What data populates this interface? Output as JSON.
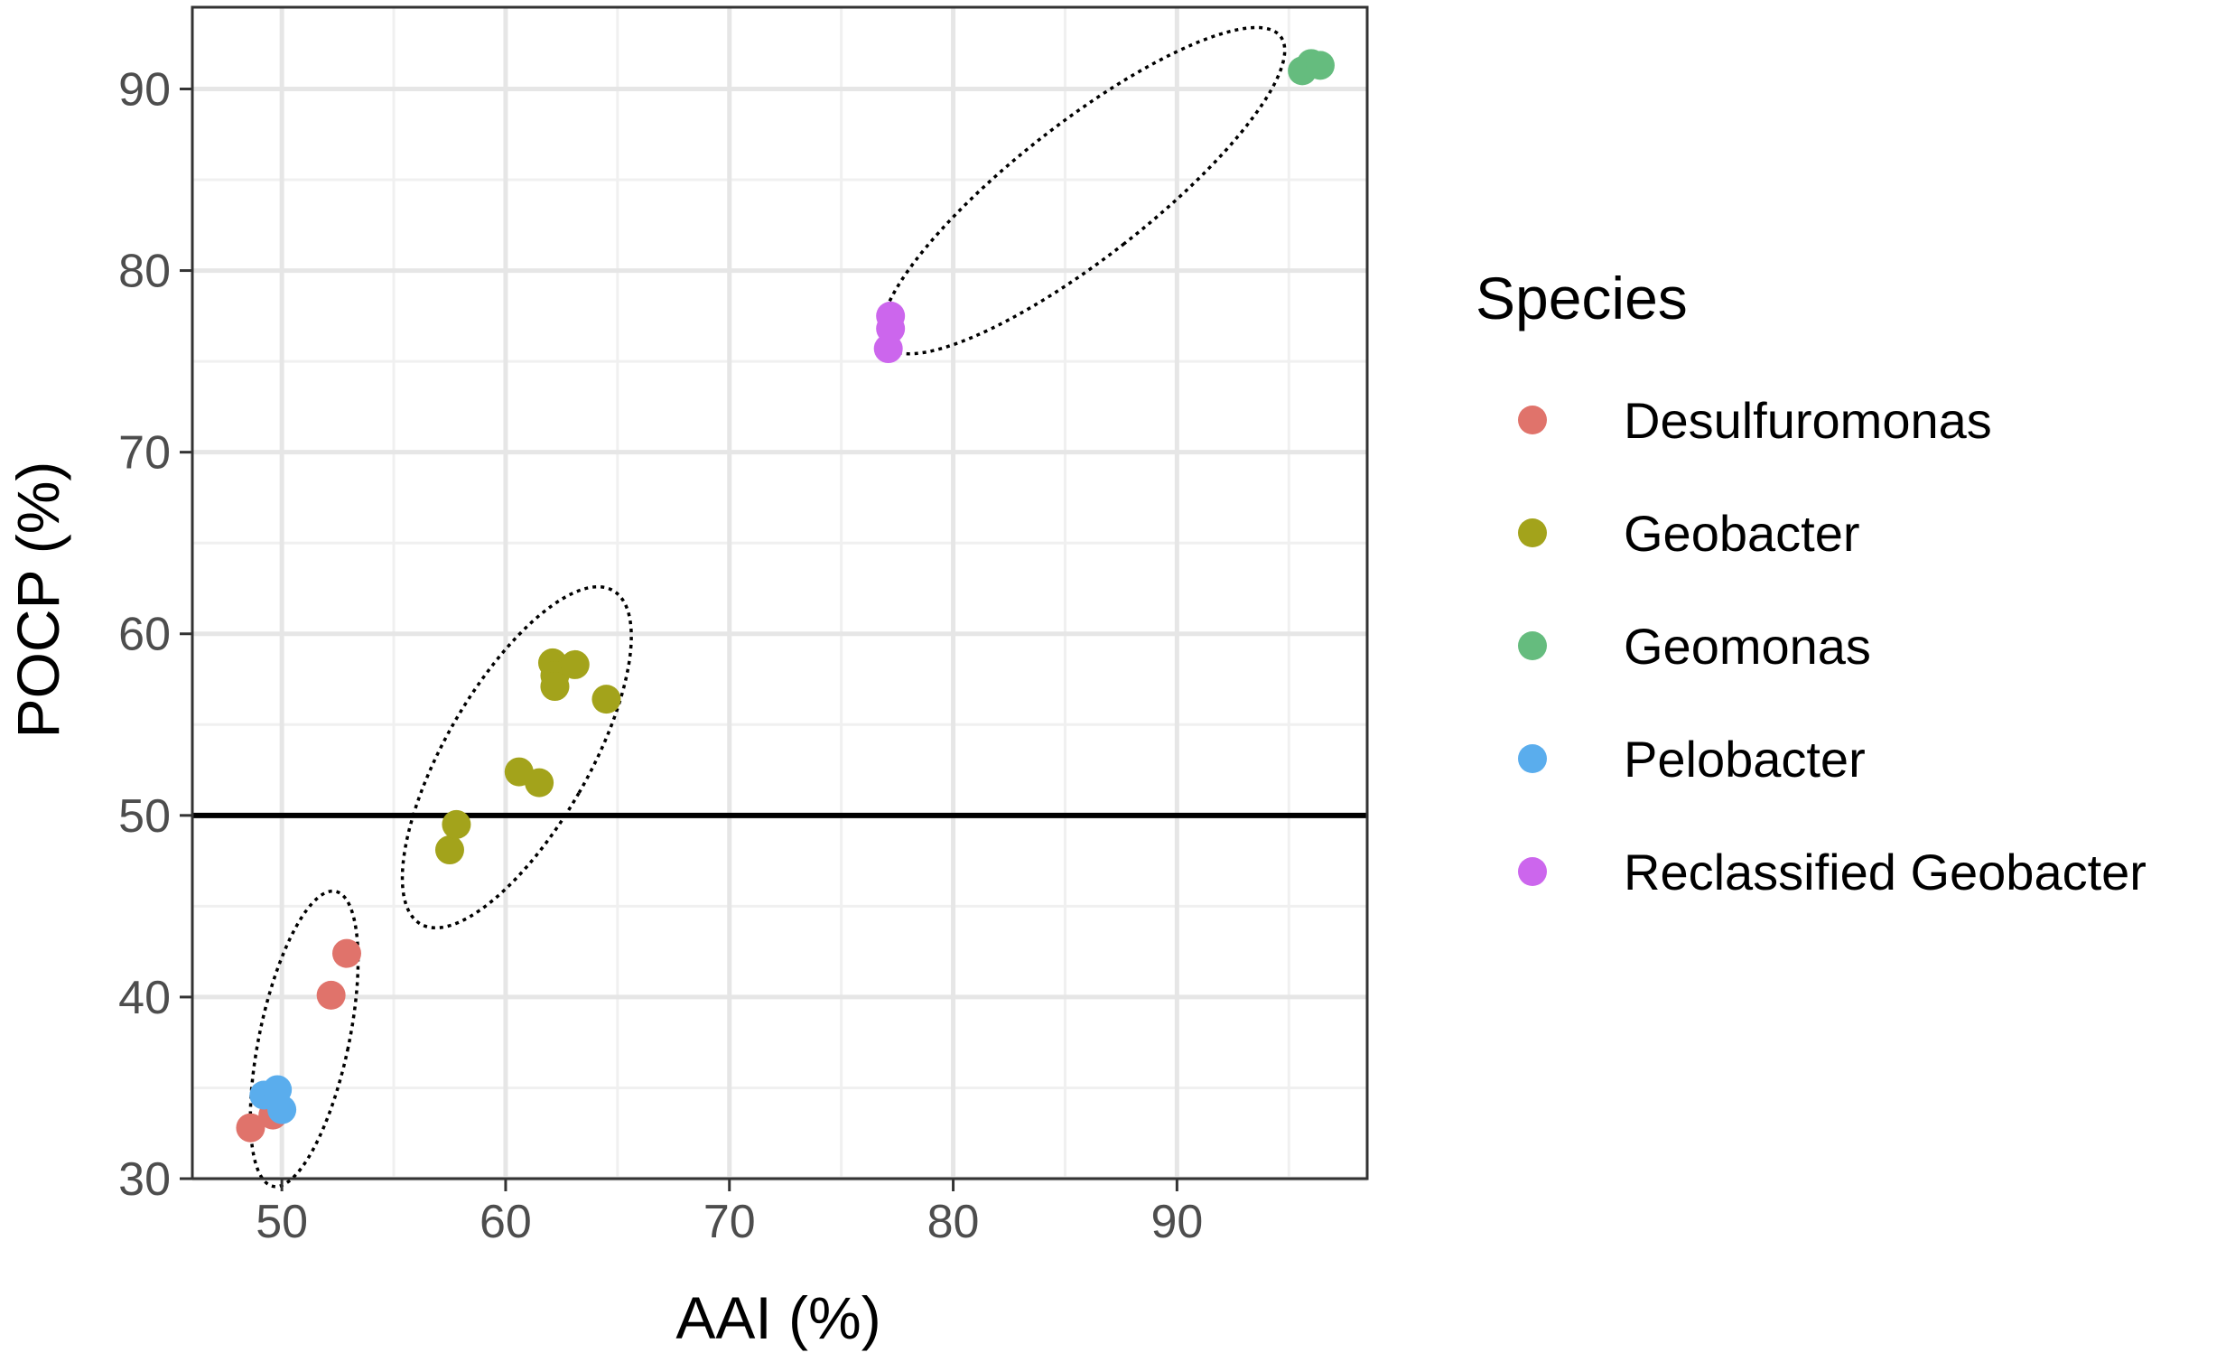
{
  "chart_data": {
    "type": "scatter",
    "xlabel": "AAI (%)",
    "ylabel": "POCP (%)",
    "xlim": [
      46,
      98.5
    ],
    "ylim": [
      30,
      94.5
    ],
    "x_ticks": [
      50,
      60,
      70,
      80,
      90
    ],
    "y_ticks": [
      30,
      40,
      50,
      60,
      70,
      80,
      90
    ],
    "x_minor": [
      45,
      55,
      65,
      75,
      85,
      95
    ],
    "y_minor": [
      35,
      45,
      55,
      65,
      75,
      85
    ],
    "hline": 50,
    "grid": true,
    "legend": {
      "title": "Species",
      "position": "right"
    },
    "series": [
      {
        "name": "Desulfuromonas",
        "color": "#E0736B",
        "points": [
          [
            48.6,
            32.8
          ],
          [
            49.6,
            33.5
          ],
          [
            52.2,
            40.1
          ],
          [
            52.9,
            42.4
          ]
        ]
      },
      {
        "name": "Geobacter",
        "color": "#A3A31B",
        "points": [
          [
            57.5,
            48.1
          ],
          [
            57.8,
            49.5
          ],
          [
            60.6,
            52.4
          ],
          [
            61.5,
            51.8
          ],
          [
            62.1,
            58.4
          ],
          [
            62.2,
            57.7
          ],
          [
            62.2,
            57.1
          ],
          [
            63.1,
            58.3
          ],
          [
            64.5,
            56.4
          ]
        ]
      },
      {
        "name": "Geomonas",
        "color": "#65BC7E",
        "points": [
          [
            95.6,
            91.0
          ],
          [
            96.0,
            91.4
          ],
          [
            96.4,
            91.3
          ]
        ]
      },
      {
        "name": "Pelobacter",
        "color": "#5AADED",
        "points": [
          [
            49.2,
            34.6
          ],
          [
            49.8,
            34.9
          ],
          [
            50.0,
            33.8
          ]
        ]
      },
      {
        "name": "Reclassified Geobacter",
        "color": "#CC66ED",
        "points": [
          [
            77.2,
            77.5
          ],
          [
            77.2,
            76.8
          ],
          [
            77.1,
            75.7
          ]
        ]
      }
    ],
    "annotations": [
      {
        "type": "dotted-ellipse",
        "group": "Desulfuromonas/Pelobacter",
        "center": [
          51.0,
          37.7
        ],
        "semi_axes": [
          2.0,
          8.3
        ],
        "rotation_deg": 12
      },
      {
        "type": "dotted-ellipse",
        "group": "Geobacter",
        "center": [
          60.5,
          53.2
        ],
        "semi_axes": [
          3.2,
          10.6
        ],
        "rotation_deg": 30
      },
      {
        "type": "dotted-ellipse",
        "group": "Reclassified Geobacter/Geomonas",
        "center": [
          85.8,
          84.4
        ],
        "semi_axes": [
          3.0,
          13.8
        ],
        "rotation_deg": 52
      }
    ]
  }
}
